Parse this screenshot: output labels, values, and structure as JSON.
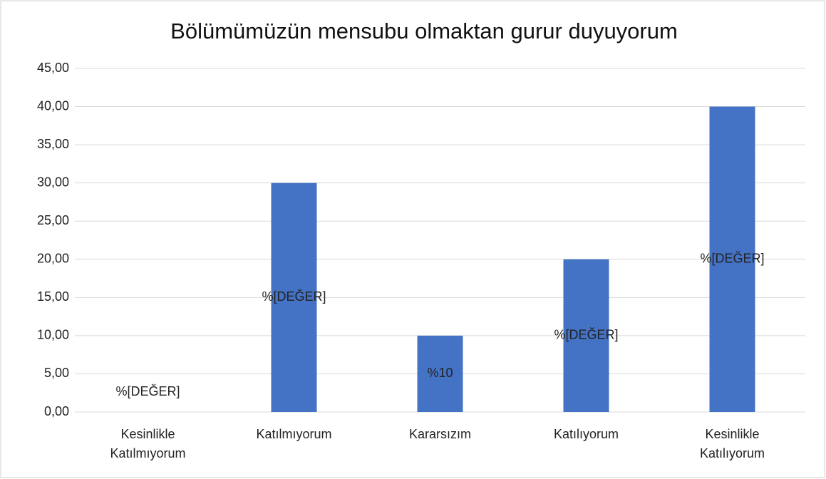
{
  "chart_data": {
    "type": "bar",
    "title": "Bölümümüzün mensubu olmaktan gurur duyuyorum",
    "categories": [
      "Kesinlikle Katılmıyorum",
      "Katılmıyorum",
      "Kararsızım",
      "Katılıyorum",
      "Kesinlikle Katılıyorum"
    ],
    "values": [
      0,
      30,
      10,
      20,
      40
    ],
    "value_labels": [
      "%[DEĞER]",
      "%[DEĞER]",
      "%10",
      "%[DEĞER]",
      "%[DEĞER]"
    ],
    "color": "#4472c4",
    "ylim": [
      0,
      45
    ],
    "yticks": [
      {
        "value": 0,
        "label": "0,00"
      },
      {
        "value": 5,
        "label": "5,00"
      },
      {
        "value": 10,
        "label": "10,00"
      },
      {
        "value": 15,
        "label": "15,00"
      },
      {
        "value": 20,
        "label": "20,00"
      },
      {
        "value": 25,
        "label": "25,00"
      },
      {
        "value": 30,
        "label": "30,00"
      },
      {
        "value": 35,
        "label": "35,00"
      },
      {
        "value": 40,
        "label": "40,00"
      },
      {
        "value": 45,
        "label": "45,00"
      }
    ],
    "grid": true
  }
}
